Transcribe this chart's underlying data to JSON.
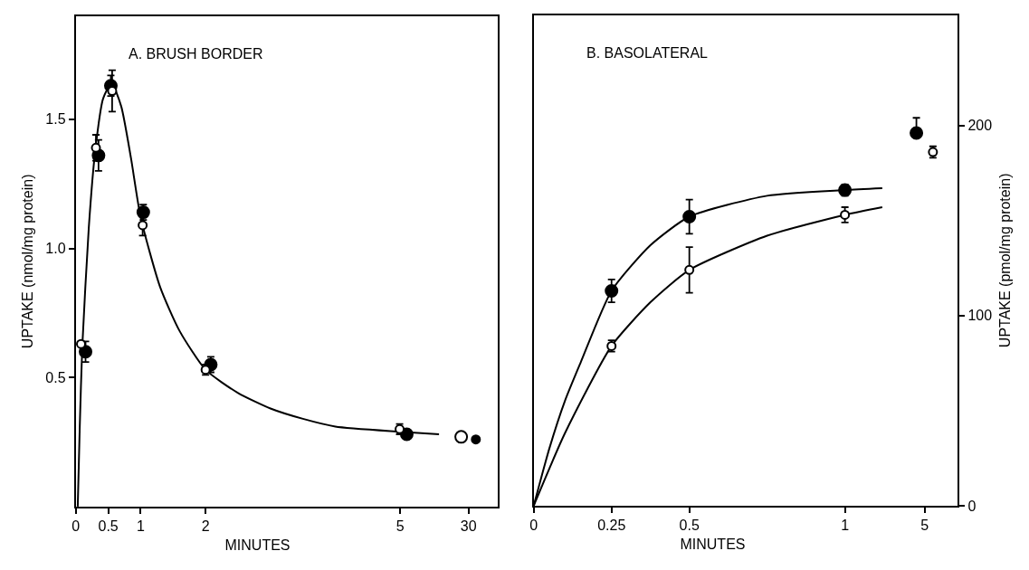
{
  "chart_data": [
    {
      "type": "scatter",
      "title": "A. BRUSH BORDER",
      "xlabel": "MINUTES",
      "ylabel": "UPTAKE (nmol/mg protein)",
      "xlim": [
        0,
        5.6
      ],
      "xticks": [
        0,
        0.5,
        1,
        2,
        5
      ],
      "ylim": [
        0,
        1.9
      ],
      "yticks": [
        {
          "value": 0.5,
          "label": "0.5"
        },
        {
          "value": 1,
          "label": "1.0"
        },
        {
          "value": 1.5,
          "label": "1.5"
        }
      ],
      "marker": "circle",
      "line_style": "solid",
      "series": [
        {
          "type": "line",
          "marker": "none",
          "color": "#000000",
          "x": [
            0.03,
            0.06,
            0.1,
            0.2,
            0.3,
            0.42,
            0.55,
            0.7,
            0.85,
            1,
            1.3,
            1.6,
            2,
            2.5,
            3,
            3.5,
            4,
            5,
            5.6
          ],
          "values": [
            0,
            0.3,
            0.62,
            1.08,
            1.38,
            1.58,
            1.64,
            1.55,
            1.35,
            1.12,
            0.85,
            0.68,
            0.53,
            0.44,
            0.38,
            0.34,
            0.31,
            0.29,
            0.28
          ]
        },
        {
          "color": "#000000",
          "x": [
            0.15,
            0.35,
            0.54,
            1.04,
            2.08,
            5.1
          ],
          "values": [
            0.6,
            1.36,
            1.63,
            1.14,
            0.55,
            0.28
          ],
          "errors": [
            0.04,
            0.06,
            0.04,
            0.03,
            0.03,
            null
          ]
        },
        {
          "color": "#ffffff",
          "x": [
            0.08,
            0.31,
            0.56,
            1.03,
            2.0,
            4.99
          ],
          "values": [
            0.63,
            1.39,
            1.61,
            1.09,
            0.53,
            0.3
          ],
          "errors": [
            null,
            0.05,
            0.08,
            0.04,
            0.02,
            0.02
          ]
        }
      ]
    },
    {
      "type": "scatter",
      "categories": [
        "30"
      ],
      "ylim": [
        0,
        1.9
      ],
      "tick_labels": "x",
      "marker": "circle",
      "series": [
        {
          "color": "#ffffff",
          "values": [
            0.27
          ]
        },
        {
          "color": "#000000",
          "values": [
            0.26
          ]
        }
      ]
    },
    {
      "type": "scatter",
      "title": "B. BASOLATERAL",
      "xlabel": "MINUTES",
      "xlim": [
        0,
        1.15
      ],
      "xticks": [
        0,
        0.25,
        0.5,
        1
      ],
      "ylim": [
        0,
        258
      ],
      "tick_labels": "x",
      "marker": "circle",
      "line_style": "solid",
      "series": [
        {
          "type": "line",
          "marker": "none",
          "color": "#000000",
          "x": [
            0,
            0.05,
            0.1,
            0.15,
            0.25,
            0.375,
            0.5,
            0.75,
            1,
            1.12
          ],
          "values": [
            0,
            30,
            55,
            75,
            113,
            137,
            152,
            163,
            166,
            167
          ]
        },
        {
          "type": "line",
          "marker": "none",
          "color": "#000000",
          "x": [
            0,
            0.1,
            0.25,
            0.375,
            0.5,
            0.75,
            1,
            1.12
          ],
          "values": [
            0,
            38,
            84,
            107,
            124,
            142,
            153,
            157
          ]
        },
        {
          "color": "#000000",
          "x": [
            0.25,
            0.5,
            1
          ],
          "values": [
            113,
            152,
            166
          ],
          "errors": [
            6,
            9,
            3
          ]
        },
        {
          "color": "#ffffff",
          "x": [
            0.25,
            0.5,
            1
          ],
          "values": [
            84,
            124,
            153
          ],
          "errors": [
            3,
            12,
            4
          ]
        }
      ]
    },
    {
      "type": "scatter",
      "categories": [
        "5"
      ],
      "ylabel": "UPTAKE (pmol/mg protein)",
      "ylim": [
        0,
        258
      ],
      "yticks": [
        0,
        100,
        200
      ],
      "marker": "circle",
      "series": [
        {
          "color": "#000000",
          "values": [
            196
          ],
          "errors": [
            [
              196,
              204
            ]
          ]
        },
        {
          "color": "#ffffff",
          "values": [
            186
          ],
          "errors": [
            3
          ]
        }
      ]
    }
  ]
}
